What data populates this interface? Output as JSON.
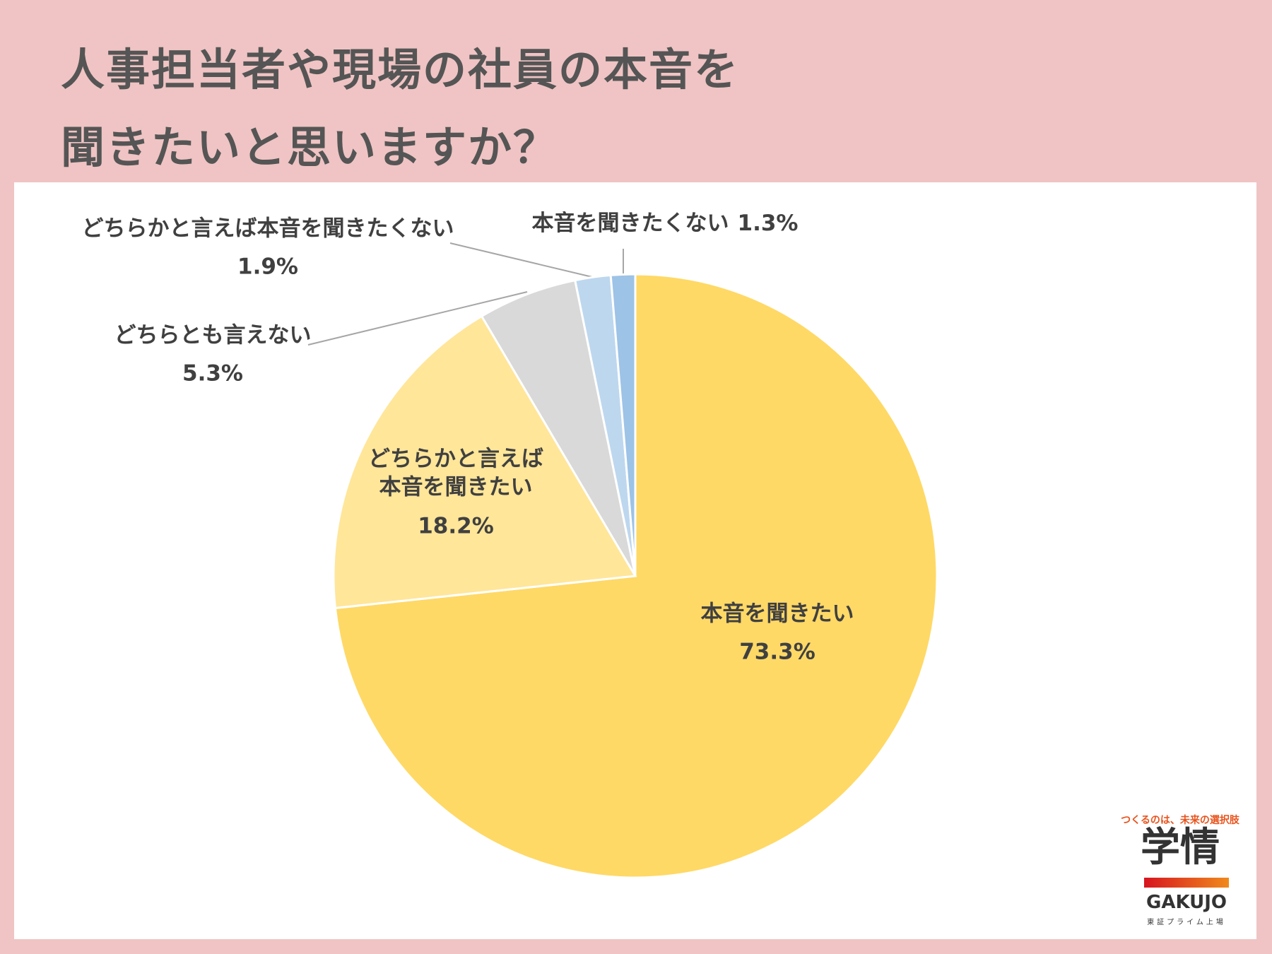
{
  "chart_data": {
    "type": "pie",
    "title": [
      "人事担当者や現場の社員の本音を",
      "聞きたいと思いますか？"
    ],
    "categories": [
      "本音を聞きたい",
      "どちらかと言えば本音を聞きたい",
      "どちらとも言えない",
      "どちらかと言えば本音を聞きたくない",
      "本音を聞きたくない"
    ],
    "values": [
      73.3,
      18.2,
      5.3,
      1.9,
      1.3
    ],
    "value_labels": [
      "73.3%",
      "18.2%",
      "5.3%",
      "1.9%",
      "1.3%"
    ],
    "colors": [
      "#ffd966",
      "#ffe699",
      "#d9d9d9",
      "#bdd7ee",
      "#9dc3e6"
    ]
  },
  "logo": {
    "tagline": "つくるのは、未来の選択肢",
    "name": "学情",
    "roman": "GAKUJO",
    "listing": "東証プライム上場"
  }
}
